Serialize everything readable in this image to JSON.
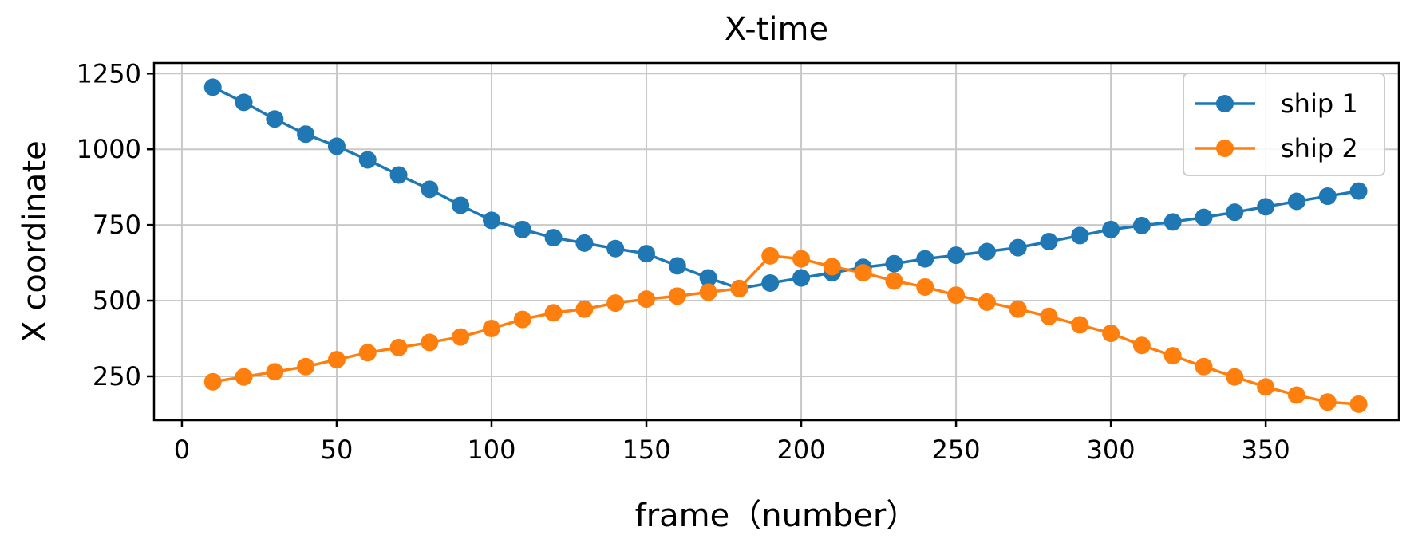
{
  "chart_data": {
    "type": "line",
    "title": "X-time",
    "xlabel": "frame（number）",
    "ylabel": "X coordinate",
    "xlim": [
      -9,
      393
    ],
    "ylim": [
      105,
      1285
    ],
    "xticks": [
      0,
      50,
      100,
      150,
      200,
      250,
      300,
      350
    ],
    "yticks": [
      250,
      500,
      750,
      1000,
      1250
    ],
    "grid": true,
    "legend_position": "top-right",
    "x": [
      10,
      20,
      30,
      40,
      50,
      60,
      70,
      80,
      90,
      100,
      110,
      120,
      130,
      140,
      150,
      160,
      170,
      180,
      190,
      200,
      210,
      220,
      230,
      240,
      250,
      260,
      270,
      280,
      290,
      300,
      310,
      320,
      330,
      340,
      350,
      360,
      370,
      380
    ],
    "series": [
      {
        "name": "ship 1",
        "color": "#1f77b4",
        "marker": "circle",
        "values": [
          1205,
          1155,
          1100,
          1050,
          1010,
          965,
          915,
          868,
          815,
          765,
          735,
          708,
          690,
          672,
          655,
          615,
          575,
          540,
          558,
          575,
          592,
          610,
          622,
          638,
          650,
          662,
          675,
          695,
          715,
          735,
          748,
          760,
          775,
          792,
          810,
          828,
          845,
          862
        ]
      },
      {
        "name": "ship 2",
        "color": "#ff7f0e",
        "marker": "circle",
        "values": [
          232,
          248,
          265,
          282,
          305,
          328,
          345,
          362,
          380,
          408,
          438,
          460,
          472,
          492,
          505,
          515,
          528,
          540,
          648,
          638,
          612,
          592,
          565,
          545,
          518,
          495,
          472,
          448,
          420,
          392,
          352,
          318,
          282,
          248,
          215,
          188,
          165,
          158
        ]
      }
    ]
  }
}
